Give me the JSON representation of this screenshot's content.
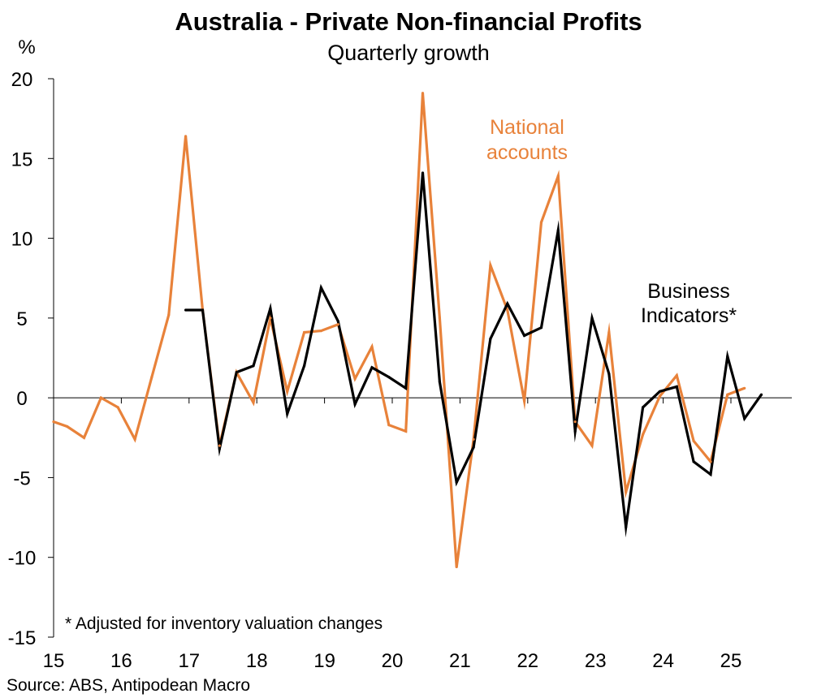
{
  "chart_data": {
    "type": "line",
    "title": "Australia - Private Non-financial Profits",
    "subtitle": "Quarterly growth",
    "ylabel": "%",
    "ylim": [
      -15,
      20
    ],
    "yticks": [
      20,
      15,
      10,
      5,
      0,
      -5,
      -10,
      -15
    ],
    "ytick_labels": [
      "20",
      "15",
      "10",
      "5",
      "0",
      "-5",
      "-10",
      "-15"
    ],
    "xlim": [
      2015.0,
      2026.0
    ],
    "xticks": [
      2015,
      2016,
      2017,
      2018,
      2019,
      2020,
      2021,
      2022,
      2023,
      2024,
      2025
    ],
    "xtick_labels": [
      "15",
      "16",
      "17",
      "18",
      "19",
      "20",
      "21",
      "22",
      "23",
      "24",
      "25"
    ],
    "note": "* Adjusted for inventory valuation changes",
    "source": "Source: ABS, Antipodean Macro",
    "series": [
      {
        "name": "National accounts",
        "label_lines": [
          "National",
          "accounts"
        ],
        "color": "#E8823A",
        "x": [
          2015.0,
          2015.2,
          2015.45,
          2015.7,
          2015.95,
          2016.2,
          2016.45,
          2016.7,
          2016.95,
          2017.2,
          2017.45,
          2017.7,
          2017.95,
          2018.2,
          2018.45,
          2018.7,
          2018.95,
          2019.2,
          2019.45,
          2019.7,
          2019.95,
          2020.2,
          2020.45,
          2020.7,
          2020.95,
          2021.2,
          2021.45,
          2021.7,
          2021.95,
          2022.2,
          2022.45,
          2022.7,
          2022.95,
          2023.2,
          2023.45,
          2023.7,
          2023.95,
          2024.2,
          2024.45,
          2024.7,
          2024.95,
          2025.2
        ],
        "values": [
          -1.5,
          -1.8,
          -2.5,
          0.0,
          -0.6,
          -2.6,
          1.3,
          5.2,
          16.4,
          5.5,
          -3.0,
          1.6,
          -0.3,
          5.0,
          0.4,
          4.1,
          4.2,
          4.6,
          1.2,
          3.2,
          -1.7,
          -2.1,
          19.1,
          5.0,
          -10.6,
          -2.6,
          8.3,
          5.5,
          -0.2,
          11.0,
          13.9,
          -1.5,
          -3.0,
          4.1,
          -5.9,
          -2.3,
          0.1,
          1.4,
          -2.7,
          -4.0,
          0.2,
          0.6
        ]
      },
      {
        "name": "Business Indicators*",
        "label_lines": [
          "Business",
          "Indicators*"
        ],
        "color": "#000000",
        "x": [
          2016.95,
          2017.2,
          2017.45,
          2017.7,
          2017.95,
          2018.2,
          2018.45,
          2018.7,
          2018.95,
          2019.2,
          2019.45,
          2019.7,
          2019.95,
          2020.2,
          2020.45,
          2020.7,
          2020.95,
          2021.2,
          2021.45,
          2021.7,
          2021.95,
          2022.2,
          2022.45,
          2022.7,
          2022.95,
          2023.2,
          2023.45,
          2023.7,
          2023.95,
          2024.2,
          2024.45,
          2024.7,
          2024.95,
          2025.2,
          2025.45
        ],
        "values": [
          5.5,
          5.5,
          -3.2,
          1.6,
          2.0,
          5.6,
          -1.0,
          2.0,
          6.9,
          4.8,
          -0.4,
          1.9,
          1.3,
          0.6,
          14.1,
          1.0,
          -5.3,
          -3.1,
          3.7,
          5.9,
          3.9,
          4.4,
          10.5,
          -2.1,
          5.0,
          1.5,
          -8.1,
          -0.6,
          0.4,
          0.7,
          -4.0,
          -4.8,
          2.6,
          -1.3,
          0.2
        ]
      }
    ]
  }
}
